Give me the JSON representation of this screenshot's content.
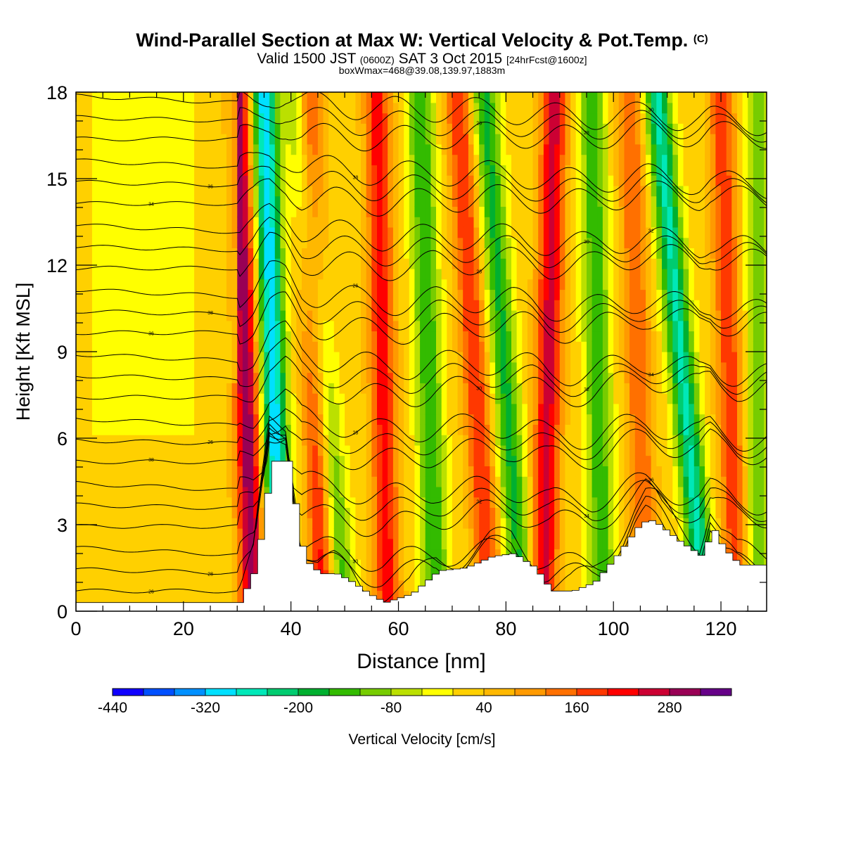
{
  "header": {
    "title_main": "Wind-Parallel Section at Max W: Vertical Velocity & Pot.Temp.",
    "title_mark": "(C)",
    "valid_prefix": "Valid 1500 JST",
    "valid_utc": "(0600Z)",
    "valid_date": "SAT 3 Oct 2015",
    "forecast": "[24hrFcst@1600z]",
    "boxinfo": "boxWmax=468@39.08,139.97,1883m"
  },
  "chart_data": {
    "type": "heatmap",
    "xlabel": "Distance [nm]",
    "ylabel": "Height [Kft MSL]",
    "xlim": [
      0,
      128.5
    ],
    "ylim": [
      0,
      18
    ],
    "x_ticks": [
      0,
      20,
      40,
      60,
      80,
      100,
      120
    ],
    "y_ticks": [
      0,
      3,
      6,
      9,
      12,
      15,
      18
    ],
    "colorbar": {
      "label": "Vertical Velocity [cm/s]",
      "tick_labels": [
        "-440",
        "-320",
        "-200",
        "-80",
        "40",
        "160",
        "280"
      ],
      "colors": [
        "#1000ff",
        "#0050ff",
        "#0090ff",
        "#00e0ff",
        "#00e8b8",
        "#00cc70",
        "#00b030",
        "#33bb00",
        "#77cc00",
        "#bbe000",
        "#ffff00",
        "#ffd000",
        "#ffb800",
        "#ff9a00",
        "#ff7000",
        "#ff3800",
        "#ff0000",
        "#cc0033",
        "#990055",
        "#660088"
      ]
    },
    "series": [
      {
        "x": [
          0,
          30,
          33,
          36,
          39,
          42,
          45,
          48,
          51,
          54,
          57,
          62,
          67,
          72,
          77,
          81,
          85,
          88,
          92,
          96,
          100,
          104,
          106,
          108,
          112,
          116,
          118,
          120,
          123,
          128
        ],
        "y": [
          0.3,
          0.3,
          1.5,
          5.2,
          5.2,
          1.8,
          1.3,
          1.3,
          1.0,
          0.6,
          0.3,
          0.6,
          1.4,
          1.5,
          1.9,
          2.0,
          1.5,
          0.7,
          0.7,
          1.0,
          1.9,
          2.9,
          3.2,
          3.0,
          2.4,
          1.9,
          2.9,
          2.2,
          1.6,
          1.6
        ]
      }
    ],
    "wind_parallel_bands": [
      {
        "x_bottom": 33,
        "x_top": 30,
        "w": 290
      },
      {
        "x_bottom": 38,
        "x_top": 35,
        "w": -330
      },
      {
        "x_bottom": 46,
        "x_top": 43,
        "w": 200
      },
      {
        "x_bottom": 50,
        "x_top": 41,
        "w": -160
      },
      {
        "x_bottom": 58,
        "x_top": 56,
        "w": 200
      },
      {
        "x_bottom": 67,
        "x_top": 64,
        "w": -180
      },
      {
        "x_bottom": 77,
        "x_top": 71,
        "w": 180
      },
      {
        "x_bottom": 83,
        "x_top": 76,
        "w": -190
      },
      {
        "x_bottom": 87,
        "x_top": 89,
        "w": 240
      },
      {
        "x_bottom": 98,
        "x_top": 96,
        "w": -170
      },
      {
        "x_bottom": 106,
        "x_top": 103,
        "w": 140
      },
      {
        "x_bottom": 117,
        "x_top": 108,
        "w": -270
      },
      {
        "x_bottom": 123,
        "x_top": 120,
        "w": 170
      },
      {
        "x_bottom": 127,
        "x_top": 127,
        "w": -140
      }
    ],
    "contour_labels": [
      "26",
      "28",
      "30",
      "32",
      "34",
      "36",
      "38"
    ]
  }
}
